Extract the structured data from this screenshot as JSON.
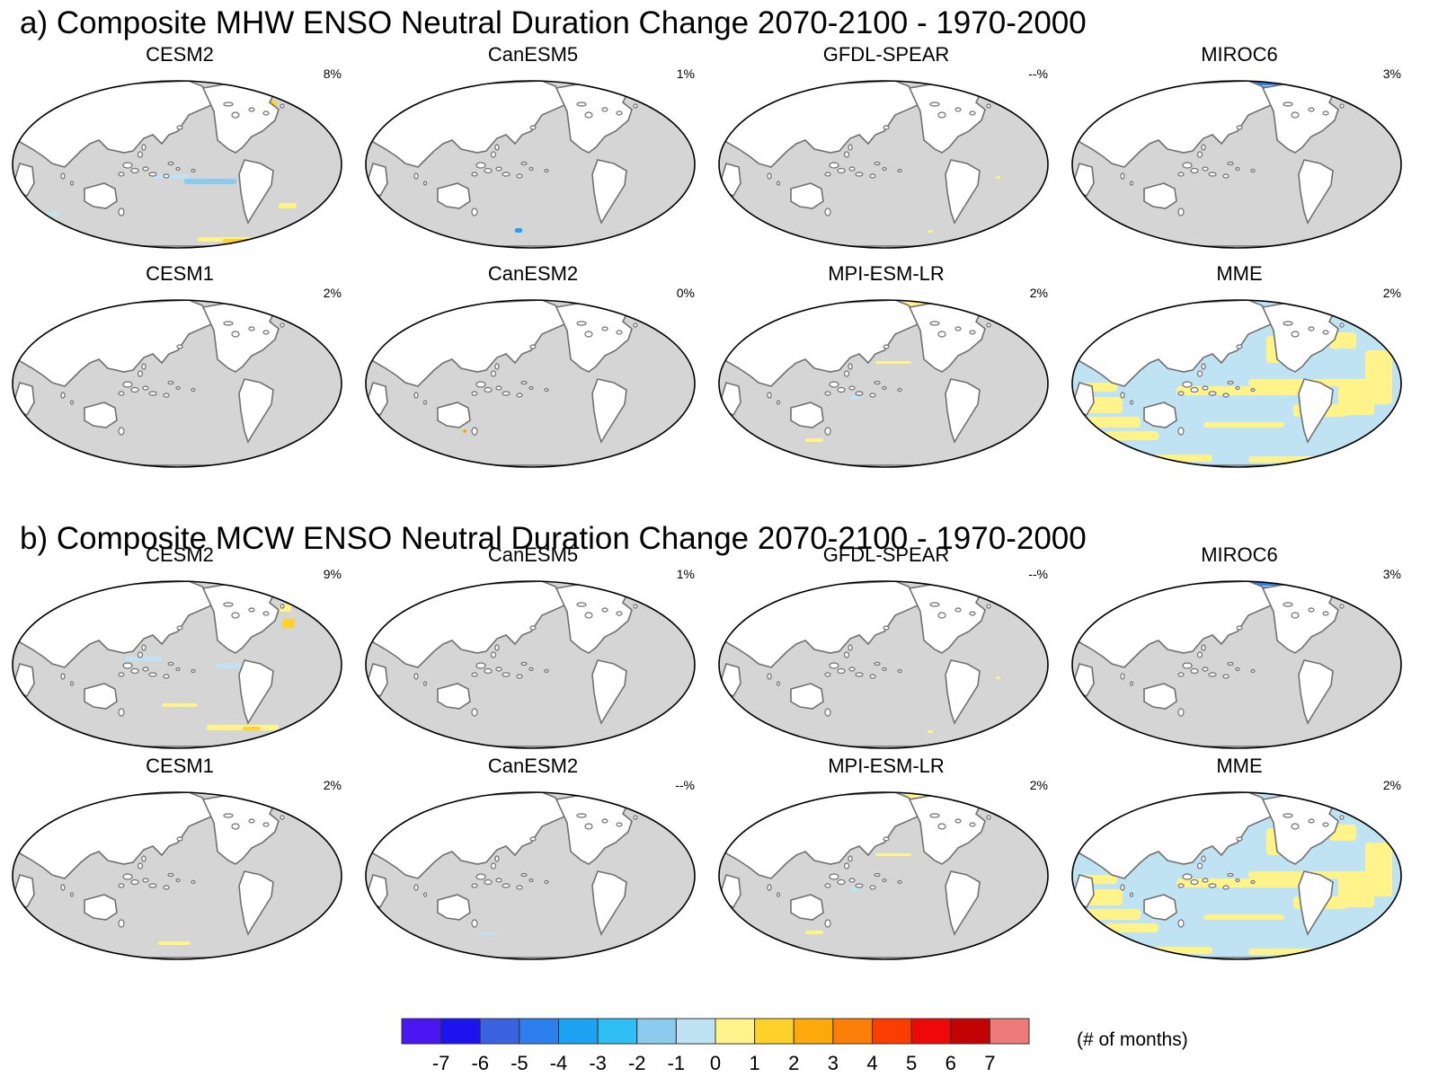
{
  "sections": [
    {
      "id": "a",
      "title": "a) Composite MHW ENSO Neutral Duration Change 2070-2100 - 1970-2000",
      "panels": [
        {
          "model": "CESM2",
          "pct": "8%",
          "pattern": "cesm2_mhw"
        },
        {
          "model": "CanESM5",
          "pct": "1%",
          "pattern": "canesm5_mhw"
        },
        {
          "model": "GFDL-SPEAR",
          "pct": "--%",
          "pattern": "gfdl"
        },
        {
          "model": "MIROC6",
          "pct": "3%",
          "pattern": "miroc6"
        },
        {
          "model": "CESM1",
          "pct": "2%",
          "pattern": "cesm1_mhw"
        },
        {
          "model": "CanESM2",
          "pct": "0%",
          "pattern": "canesm2_mhw"
        },
        {
          "model": "MPI-ESM-LR",
          "pct": "2%",
          "pattern": "mpi"
        },
        {
          "model": "MME",
          "pct": "2%",
          "pattern": "mme"
        }
      ]
    },
    {
      "id": "b",
      "title": "b) Composite MCW ENSO Neutral Duration Change 2070-2100 - 1970-2000",
      "panels": [
        {
          "model": "CESM2",
          "pct": "9%",
          "pattern": "cesm2_mcw"
        },
        {
          "model": "CanESM5",
          "pct": "1%",
          "pattern": "canesm5_mcw"
        },
        {
          "model": "GFDL-SPEAR",
          "pct": "--%",
          "pattern": "gfdl"
        },
        {
          "model": "MIROC6",
          "pct": "3%",
          "pattern": "miroc6"
        },
        {
          "model": "CESM1",
          "pct": "2%",
          "pattern": "cesm1_mcw"
        },
        {
          "model": "CanESM2",
          "pct": "--%",
          "pattern": "canesm2_mcw"
        },
        {
          "model": "MPI-ESM-LR",
          "pct": "2%",
          "pattern": "mpi"
        },
        {
          "model": "MME",
          "pct": "2%",
          "pattern": "mme"
        }
      ]
    }
  ],
  "colorbar": {
    "colors": [
      "#4a16f2",
      "#1c13ee",
      "#3b62e0",
      "#2d7ff0",
      "#1ea2f4",
      "#2fbff4",
      "#8ccbee",
      "#c0e3f4",
      "#fff38a",
      "#fed22a",
      "#fda80b",
      "#fb7e06",
      "#fb3e00",
      "#ee0808",
      "#c30303",
      "#ee7a7a"
    ],
    "ticks": [
      "-7",
      "-6",
      "-5",
      "-4",
      "-3",
      "-2",
      "-1",
      "0",
      "1",
      "2",
      "3",
      "4",
      "5",
      "6",
      "7"
    ],
    "unit": "(# of months)"
  },
  "colors": {
    "ocean_gray": "#d5d5d5",
    "land": "#ffffff",
    "coast": "#707070",
    "outline": "#000000",
    "yellow": "#fff38a",
    "gold": "#fed22a",
    "orange": "#fda80b",
    "light_blue": "#c0e3f4",
    "mid_blue": "#8ccbee",
    "blue": "#1ea2f4",
    "deep_blue": "#2d7ff0"
  }
}
